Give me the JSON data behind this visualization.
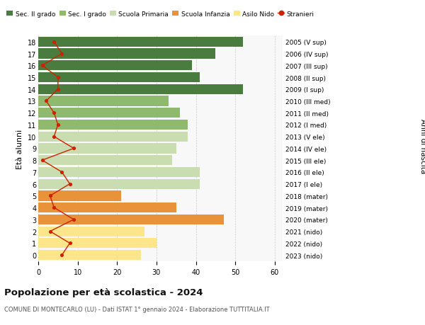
{
  "ages": [
    0,
    1,
    2,
    3,
    4,
    5,
    6,
    7,
    8,
    9,
    10,
    11,
    12,
    13,
    14,
    15,
    16,
    17,
    18
  ],
  "bar_values": [
    26,
    30,
    27,
    47,
    35,
    21,
    41,
    41,
    34,
    35,
    38,
    38,
    36,
    33,
    52,
    41,
    39,
    45,
    52
  ],
  "bar_colors": [
    "#fde68a",
    "#fde68a",
    "#fde68a",
    "#e8933a",
    "#e8933a",
    "#e8933a",
    "#c9ddb0",
    "#c9ddb0",
    "#c9ddb0",
    "#c9ddb0",
    "#c9ddb0",
    "#8fba6e",
    "#8fba6e",
    "#8fba6e",
    "#4a7c40",
    "#4a7c40",
    "#4a7c40",
    "#4a7c40",
    "#4a7c40"
  ],
  "stranieri_values": [
    6,
    8,
    3,
    9,
    4,
    3,
    8,
    6,
    1,
    9,
    4,
    5,
    4,
    2,
    5,
    5,
    1,
    6,
    4
  ],
  "right_labels": [
    "2023 (nido)",
    "2022 (nido)",
    "2021 (nido)",
    "2020 (mater)",
    "2019 (mater)",
    "2018 (mater)",
    "2017 (I ele)",
    "2016 (II ele)",
    "2015 (III ele)",
    "2014 (IV ele)",
    "2013 (V ele)",
    "2012 (I med)",
    "2011 (II med)",
    "2010 (III med)",
    "2009 (I sup)",
    "2008 (II sup)",
    "2007 (III sup)",
    "2006 (IV sup)",
    "2005 (V sup)"
  ],
  "legend_labels": [
    "Sec. II grado",
    "Sec. I grado",
    "Scuola Primaria",
    "Scuola Infanzia",
    "Asilo Nido",
    "Stranieri"
  ],
  "legend_colors": [
    "#4a7c40",
    "#8fba6e",
    "#c9ddb0",
    "#e8933a",
    "#fde68a",
    "#cc2200"
  ],
  "title": "Popolazione per età scolastica - 2024",
  "subtitle": "COMUNE DI MONTECARLO (LU) - Dati ISTAT 1° gennaio 2024 - Elaborazione TUTTITALIA.IT",
  "ylabel_left": "Età alunni",
  "ylabel_right": "Anni di nascita",
  "xlim": [
    0,
    62
  ],
  "xticks": [
    0,
    10,
    20,
    30,
    40,
    50,
    60
  ],
  "background_color": "#ffffff",
  "bar_bg_color": "#f8f8f8"
}
